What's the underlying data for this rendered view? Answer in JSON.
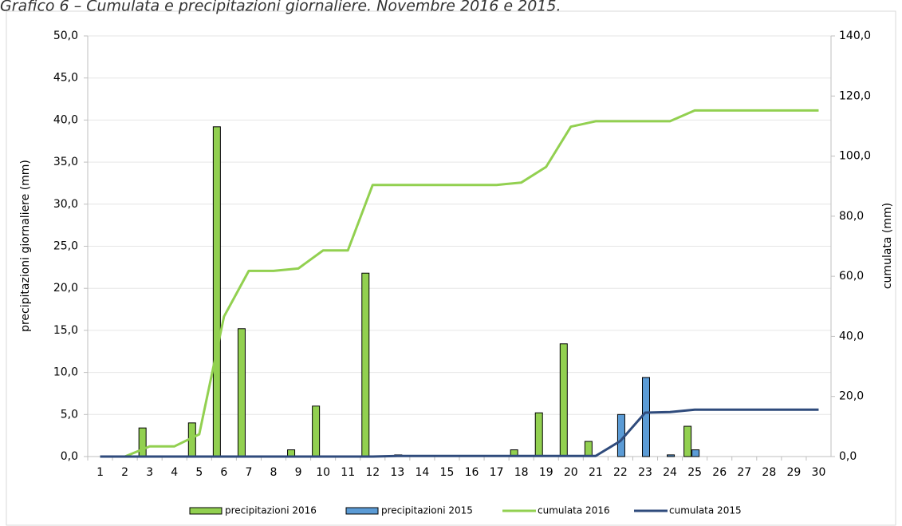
{
  "chart_data": {
    "type": "bar",
    "title": "Grafico 6 – Cumulata e precipitazioni giornaliere. Novembre 2016 e 2015.",
    "y_label": "precipitazioni giornaliere (mm)",
    "y2_label": "cumulata (mm)",
    "categories": [
      "1",
      "2",
      "3",
      "4",
      "5",
      "6",
      "7",
      "8",
      "9",
      "10",
      "11",
      "12",
      "13",
      "14",
      "15",
      "16",
      "17",
      "18",
      "19",
      "20",
      "21",
      "22",
      "23",
      "24",
      "25",
      "26",
      "27",
      "28",
      "29",
      "30"
    ],
    "series": [
      {
        "name": "precipitazioni 2016",
        "type": "bar",
        "color": "#92d050",
        "values": [
          0,
          0,
          3.4,
          0,
          4.0,
          39.2,
          15.2,
          0,
          0.8,
          6.0,
          0,
          21.8,
          0,
          0,
          0,
          0,
          0,
          0.8,
          5.2,
          13.4,
          1.8,
          0,
          0,
          0,
          3.6,
          0,
          0,
          0,
          0,
          0
        ]
      },
      {
        "name": "precipitazioni 2015",
        "type": "bar",
        "color": "#5b9bd5",
        "values": [
          0,
          0,
          0,
          0,
          0,
          0,
          0,
          0,
          0,
          0,
          0,
          0,
          0.2,
          0,
          0,
          0,
          0,
          0,
          0,
          0,
          0,
          5.0,
          9.4,
          0.2,
          0.8,
          0,
          0,
          0,
          0,
          0
        ]
      },
      {
        "name": "cumulata 2016",
        "type": "line",
        "axis": "y2",
        "color": "#92d050",
        "values": [
          0,
          0,
          3.4,
          3.4,
          7.4,
          46.6,
          61.8,
          61.8,
          62.6,
          68.6,
          68.6,
          90.4,
          90.4,
          90.4,
          90.4,
          90.4,
          90.4,
          91.2,
          96.4,
          109.8,
          111.6,
          111.6,
          111.6,
          111.6,
          115.2,
          115.2,
          115.2,
          115.2,
          115.2,
          115.2
        ]
      },
      {
        "name": "cumulata 2015",
        "type": "line",
        "axis": "y2",
        "color": "#2f4b7c",
        "values": [
          0,
          0,
          0,
          0,
          0,
          0,
          0,
          0,
          0,
          0,
          0,
          0,
          0.2,
          0.2,
          0.2,
          0.2,
          0.2,
          0.2,
          0.2,
          0.2,
          0.2,
          5.2,
          14.6,
          14.8,
          15.6,
          15.6,
          15.6,
          15.6,
          15.6,
          15.6
        ]
      }
    ],
    "ylim": [
      0,
      50
    ],
    "yticks": [
      {
        "value": 0,
        "label": "0,0"
      },
      {
        "value": 5,
        "label": "5,0"
      },
      {
        "value": 10,
        "label": "10,0"
      },
      {
        "value": 15,
        "label": "15,0"
      },
      {
        "value": 20,
        "label": "20,0"
      },
      {
        "value": 25,
        "label": "25,0"
      },
      {
        "value": 30,
        "label": "30,0"
      },
      {
        "value": 35,
        "label": "35,0"
      },
      {
        "value": 40,
        "label": "40,0"
      },
      {
        "value": 45,
        "label": "45,0"
      },
      {
        "value": 50,
        "label": "50,0"
      }
    ],
    "y2lim": [
      0,
      140
    ],
    "y2ticks": [
      {
        "value": 0,
        "label": "0,0"
      },
      {
        "value": 20,
        "label": "20,0"
      },
      {
        "value": 40,
        "label": "40,0"
      },
      {
        "value": 60,
        "label": "60,0"
      },
      {
        "value": 80,
        "label": "80,0"
      },
      {
        "value": 100,
        "label": "100,0"
      },
      {
        "value": 120,
        "label": "120,0"
      },
      {
        "value": 140,
        "label": "140,0"
      }
    ],
    "grid": true,
    "legend": "bottom"
  }
}
